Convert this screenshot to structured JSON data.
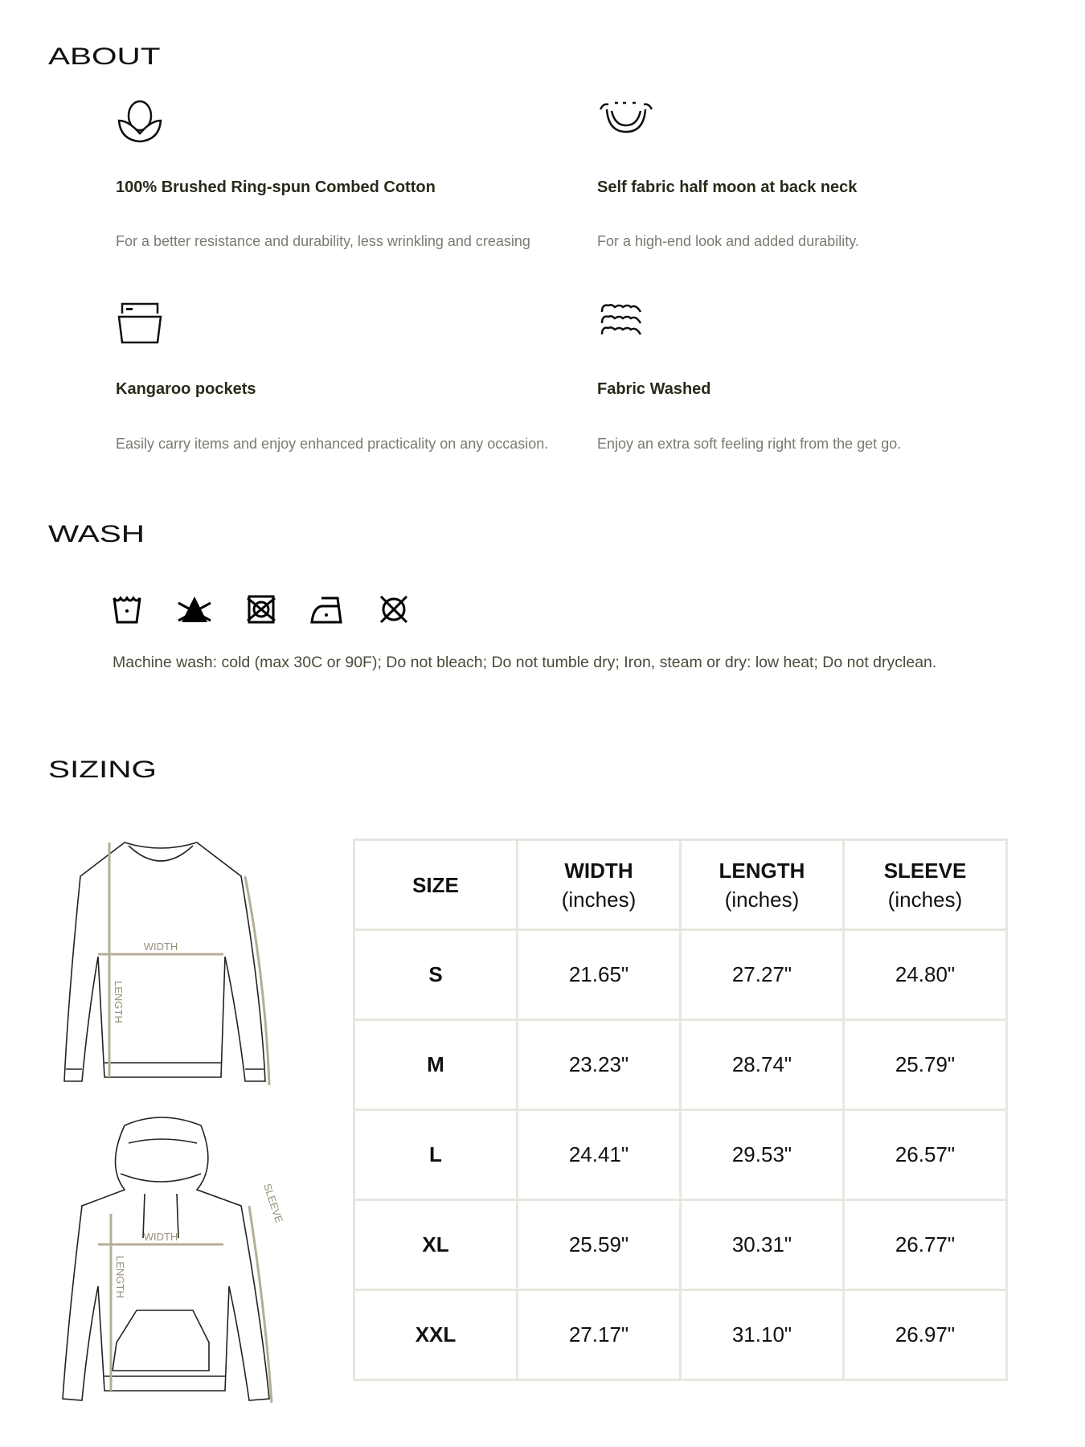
{
  "about": {
    "heading": "ABOUT",
    "features": [
      {
        "icon": "cotton-boll-icon",
        "title": "100% Brushed Ring-spun Combed Cotton",
        "description": "For a better resistance and durability, less wrinkling and creasing"
      },
      {
        "icon": "half-moon-neck-icon",
        "title": "Self fabric half moon at back neck",
        "description": "For a high-end look and added durability."
      },
      {
        "icon": "pocket-icon",
        "title": "Kangaroo pockets",
        "description": "Easily carry items and enjoy enhanced practicality on any occasion."
      },
      {
        "icon": "waves-icon",
        "title": "Fabric Washed",
        "description": "Enjoy an extra soft feeling right from the get go."
      }
    ]
  },
  "wash": {
    "heading": "WASH",
    "icons": [
      "machine-wash-cold-icon",
      "do-not-bleach-icon",
      "do-not-tumble-dry-icon",
      "iron-low-heat-icon",
      "do-not-dryclean-icon"
    ],
    "instructions": "Machine wash: cold (max 30C or 90F); Do not bleach; Do not tumble dry; Iron, steam or dry: low heat; Do not dryclean."
  },
  "sizing": {
    "heading": "SIZING",
    "diagram_labels": {
      "width": "WIDTH",
      "length": "LENGTH",
      "sleeve": "SLEEVE"
    },
    "columns": [
      {
        "title": "SIZE",
        "unit": ""
      },
      {
        "title": "WIDTH",
        "unit": "(inches)"
      },
      {
        "title": "LENGTH",
        "unit": "(inches)"
      },
      {
        "title": "SLEEVE",
        "unit": "(inches)"
      }
    ],
    "rows": [
      [
        "S",
        "21.65\"",
        "27.27\"",
        "24.80\""
      ],
      [
        "M",
        "23.23\"",
        "28.74\"",
        "25.79\""
      ],
      [
        "L",
        "24.41\"",
        "29.53\"",
        "26.57\""
      ],
      [
        "XL",
        "25.59\"",
        "30.31\"",
        "26.77\""
      ],
      [
        "XXL",
        "27.17\"",
        "31.10\"",
        "26.97\""
      ]
    ]
  },
  "colors": {
    "title_text": "#2b2a1a",
    "description_text": "#7b7a70",
    "table_border": "#e9e6df",
    "measure_line": "#b5ad98"
  }
}
